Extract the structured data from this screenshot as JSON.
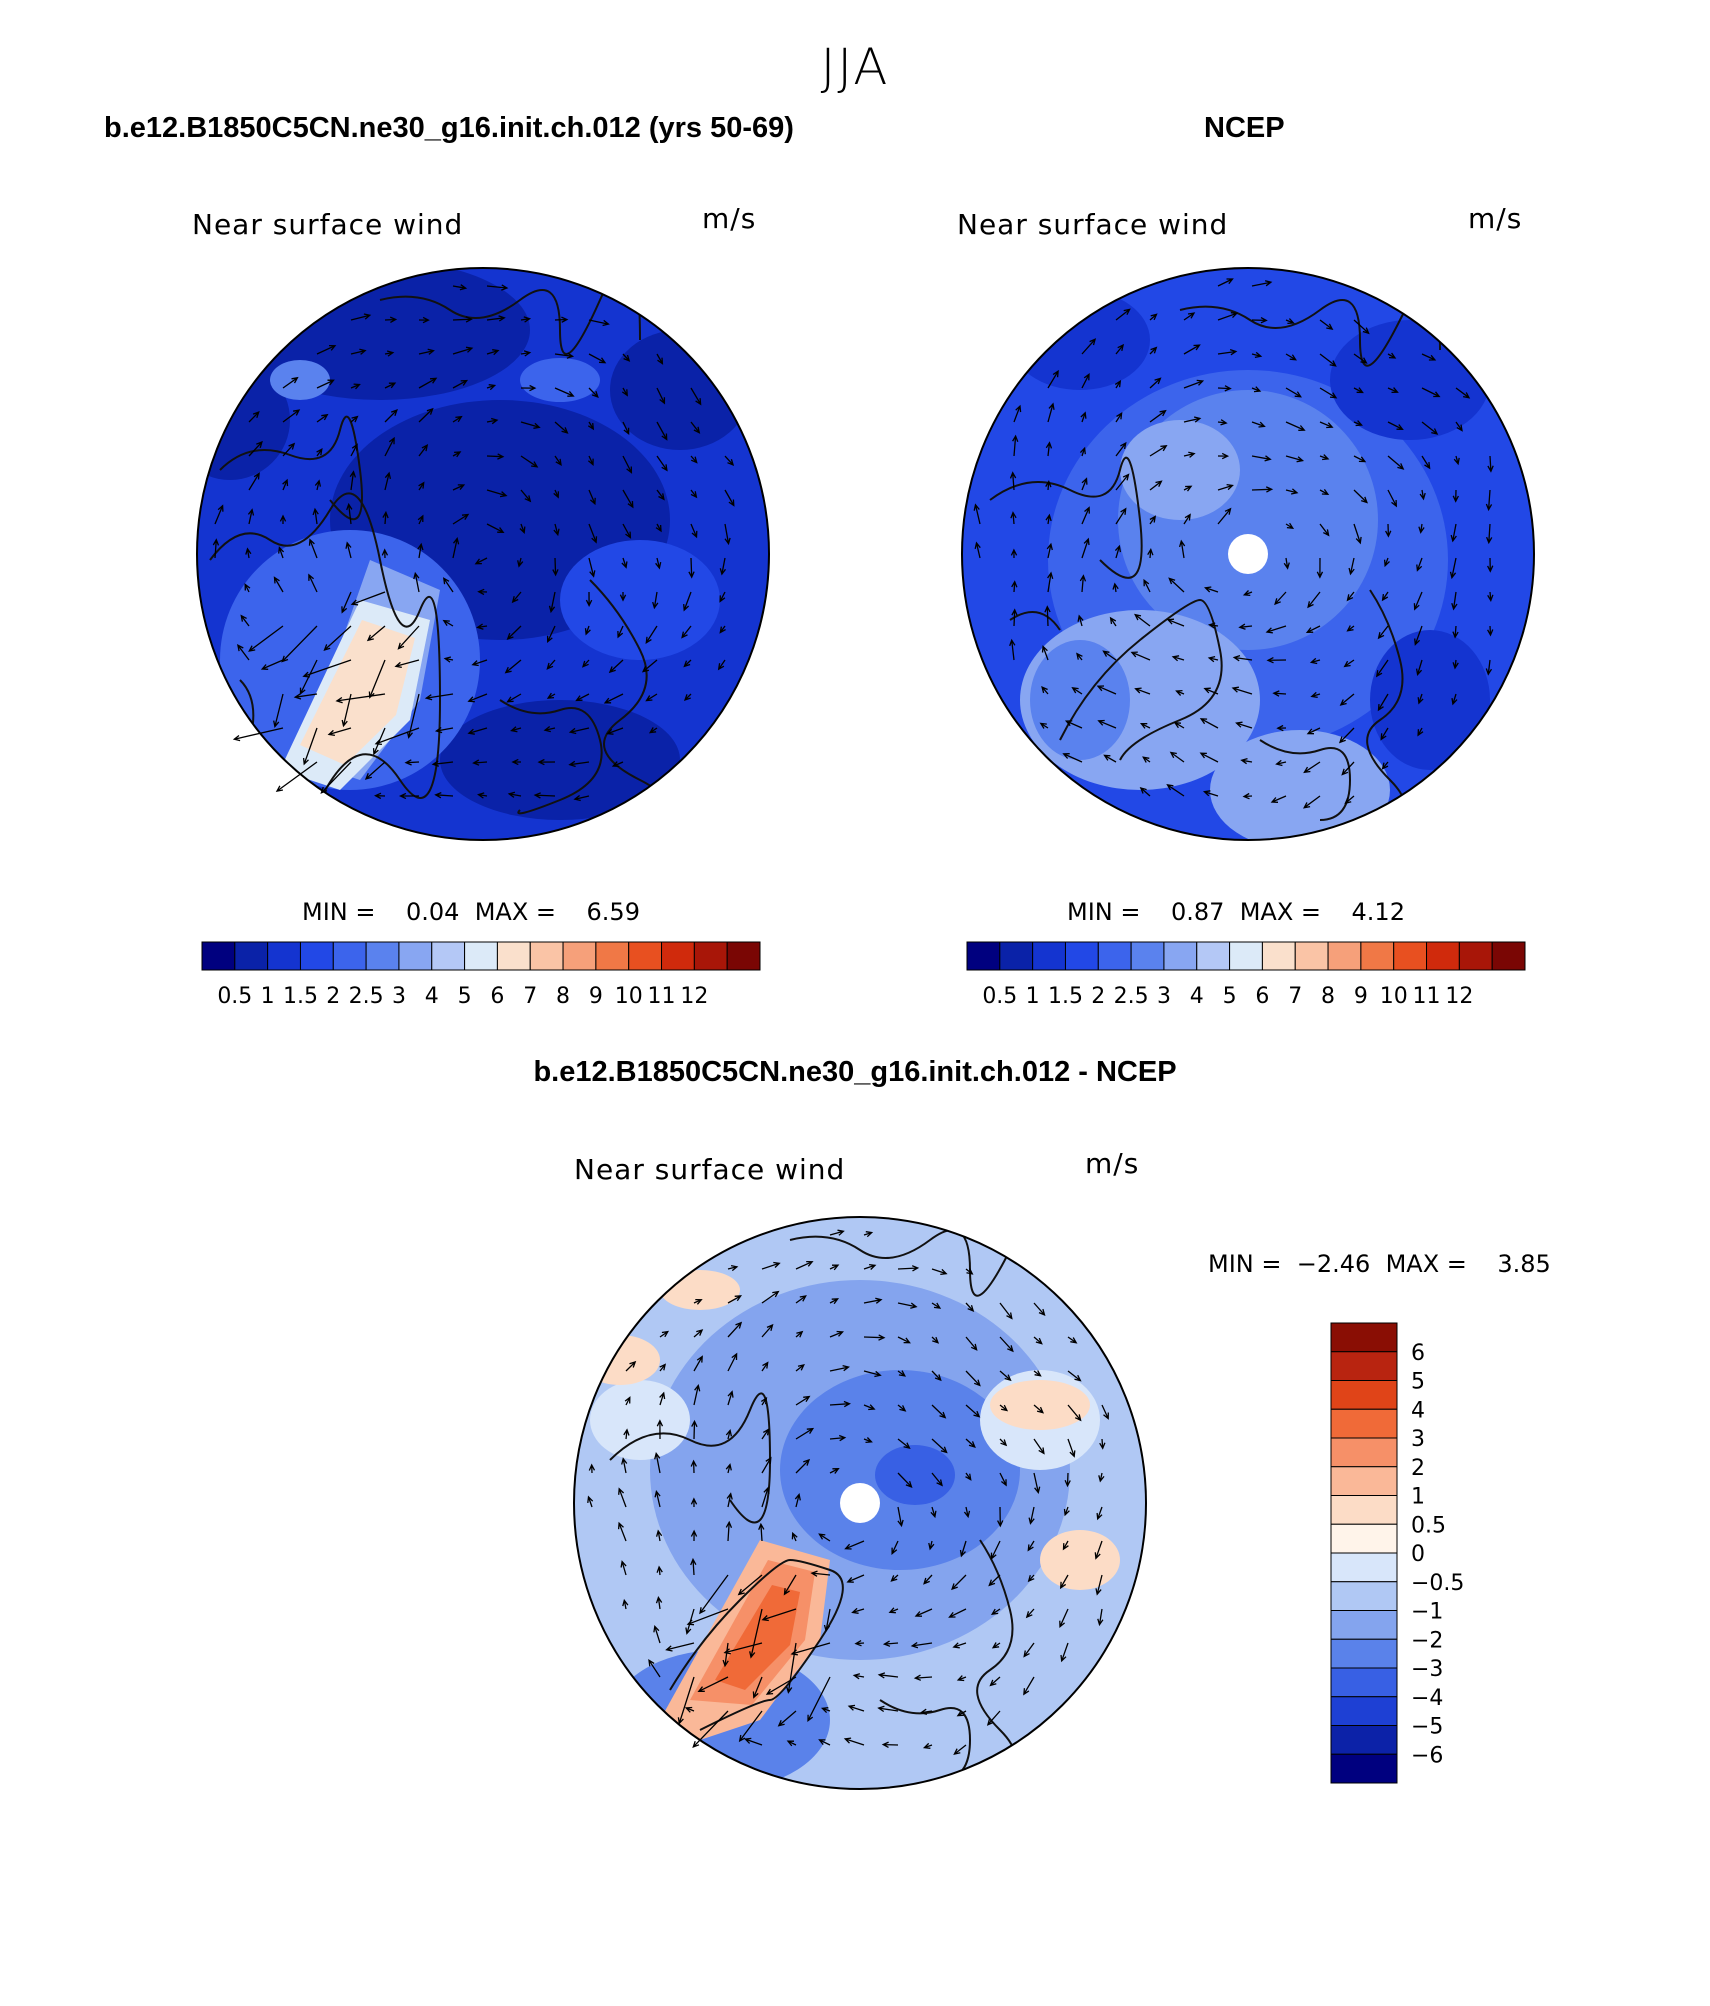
{
  "figure": {
    "title": "JJA"
  },
  "panels": [
    {
      "title": "b.e12.B1850C5CN.ne30_g16.init.ch.012 (yrs 50-69)",
      "variable": "Near surface wind",
      "units": "m/s",
      "min_label": "MIN =",
      "min_value": "0.04",
      "max_label": "MAX =",
      "max_value": "6.59",
      "has_pole_hole": false
    },
    {
      "title": "NCEP",
      "variable": "Near surface wind",
      "units": "m/s",
      "min_label": "MIN =",
      "min_value": "0.87",
      "max_label": "MAX =",
      "max_value": "4.12",
      "has_pole_hole": true
    },
    {
      "title": "b.e12.B1850C5CN.ne30_g16.init.ch.012 - NCEP",
      "variable": "Near surface wind",
      "units": "m/s",
      "min_label": "MIN =",
      "min_value": "−2.46",
      "max_label": "MAX =",
      "max_value": "3.85",
      "has_pole_hole": true
    }
  ],
  "colorbar_horizontal": {
    "tick_labels": [
      "0.5",
      "1",
      "1.5",
      "2",
      "2.5",
      "3",
      "4",
      "5",
      "6",
      "7",
      "8",
      "9",
      "10",
      "11",
      "12"
    ],
    "colors": [
      "#00007f",
      "#0a22a8",
      "#1434d0",
      "#2248e6",
      "#3c64ec",
      "#5a82ee",
      "#88a6f2",
      "#b4c8f6",
      "#dceaf8",
      "#fae0cc",
      "#fac4a6",
      "#f6a07a",
      "#f07846",
      "#e85020",
      "#d02a0c",
      "#a81608",
      "#7a0604"
    ]
  },
  "colorbar_vertical": {
    "tick_labels": [
      "6",
      "5",
      "4",
      "3",
      "2",
      "1",
      "0.5",
      "0",
      "−0.5",
      "−1",
      "−2",
      "−3",
      "−4",
      "−5",
      "−6"
    ],
    "colors": [
      "#8a0e04",
      "#b82410",
      "#e04418",
      "#f06a38",
      "#f69068",
      "#fab898",
      "#fcdcc6",
      "#fff4ea",
      "#d8e6fa",
      "#b0c8f4",
      "#84a4ee",
      "#5a82ea",
      "#3860e4",
      "#1e40d4",
      "#0c22a8",
      "#00007f"
    ]
  },
  "chart_data": [
    {
      "type": "heatmap",
      "title": "b.e12.B1850C5CN.ne30_g16.init.ch.012 (yrs 50-69)",
      "variable": "Near surface wind",
      "units": "m/s",
      "min": 0.04,
      "max": 6.59,
      "contour_levels": [
        0.5,
        1,
        1.5,
        2,
        2.5,
        3,
        4,
        5,
        6,
        7,
        8,
        9,
        10,
        11,
        12
      ],
      "projection": "north polar stereographic",
      "overlay": "wind vectors"
    },
    {
      "type": "heatmap",
      "title": "NCEP",
      "variable": "Near surface wind",
      "units": "m/s",
      "min": 0.87,
      "max": 4.12,
      "contour_levels": [
        0.5,
        1,
        1.5,
        2,
        2.5,
        3,
        4,
        5,
        6,
        7,
        8,
        9,
        10,
        11,
        12
      ],
      "projection": "north polar stereographic",
      "overlay": "wind vectors"
    },
    {
      "type": "heatmap",
      "title": "b.e12.B1850C5CN.ne30_g16.init.ch.012 - NCEP",
      "variable": "Near surface wind",
      "units": "m/s",
      "min": -2.46,
      "max": 3.85,
      "contour_levels": [
        -6,
        -5,
        -4,
        -3,
        -2,
        -1,
        -0.5,
        0,
        0.5,
        1,
        2,
        3,
        4,
        5,
        6
      ],
      "projection": "north polar stereographic",
      "overlay": "wind vectors"
    }
  ]
}
